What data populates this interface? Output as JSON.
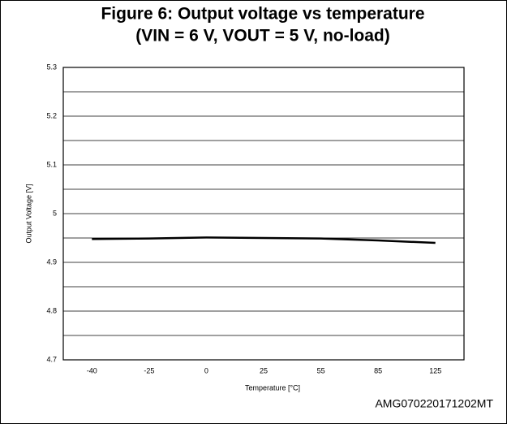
{
  "chart_data": {
    "type": "line",
    "title": [
      "Figure 6: Output voltage vs temperature",
      "(VIN = 6 V, VOUT = 5 V, no-load)"
    ],
    "x_label": "Temperature  [°C]",
    "y_label": "Output Voltage [V]",
    "categories": [
      "-40",
      "-25",
      "0",
      "25",
      "55",
      "85",
      "125"
    ],
    "series": [
      {
        "name": "Output voltage",
        "color": "#000000",
        "values": [
          4.948,
          4.949,
          4.951,
          4.95,
          4.949,
          4.945,
          4.94
        ]
      }
    ],
    "ylim": [
      4.7,
      5.3
    ],
    "yticks": [
      4.7,
      4.8,
      4.9,
      5,
      5.1,
      5.2,
      5.3
    ],
    "minor_yticks": [
      4.75,
      4.85,
      4.95,
      5.05,
      5.15,
      5.25
    ],
    "grid": true,
    "footnote": "AMG070220171202MT"
  }
}
